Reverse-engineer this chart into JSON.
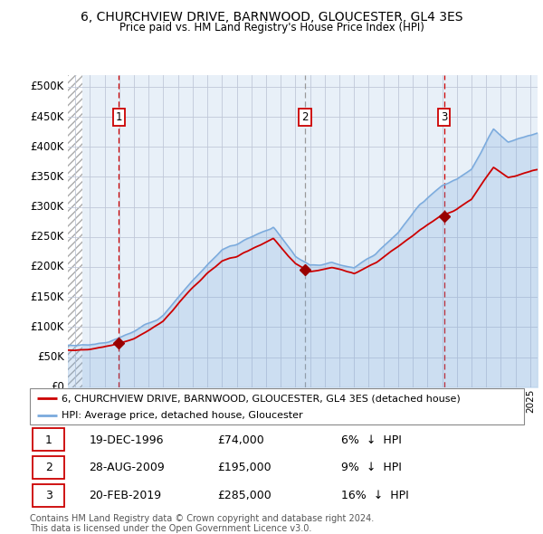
{
  "title": "6, CHURCHVIEW DRIVE, BARNWOOD, GLOUCESTER, GL4 3ES",
  "subtitle": "Price paid vs. HM Land Registry's House Price Index (HPI)",
  "hpi_label": "HPI: Average price, detached house, Gloucester",
  "property_label": "6, CHURCHVIEW DRIVE, BARNWOOD, GLOUCESTER, GL4 3ES (detached house)",
  "footer1": "Contains HM Land Registry data © Crown copyright and database right 2024.",
  "footer2": "This data is licensed under the Open Government Licence v3.0.",
  "sales": [
    {
      "num": 1,
      "date": "19-DEC-1996",
      "price": 74000,
      "year": 1996.97,
      "pct": "6%",
      "dir": "↓"
    },
    {
      "num": 2,
      "date": "28-AUG-2009",
      "price": 195000,
      "year": 2009.65,
      "pct": "9%",
      "dir": "↓"
    },
    {
      "num": 3,
      "date": "20-FEB-2019",
      "price": 285000,
      "year": 2019.13,
      "pct": "16%",
      "dir": "↓"
    }
  ],
  "ylim": [
    0,
    520000
  ],
  "xlim_start": 1993.5,
  "xlim_end": 2025.5,
  "yticks": [
    0,
    50000,
    100000,
    150000,
    200000,
    250000,
    300000,
    350000,
    400000,
    450000,
    500000
  ],
  "ytick_labels": [
    "£0",
    "£50K",
    "£100K",
    "£150K",
    "£200K",
    "£250K",
    "£300K",
    "£350K",
    "£400K",
    "£450K",
    "£500K"
  ],
  "property_color": "#cc0000",
  "hpi_color": "#7aaadd",
  "bg_color": "#e8f0f8",
  "grid_color": "#c0c8d8",
  "sale1_line_color": "#cc0000",
  "sale2_line_color": "#999999",
  "sale3_line_color": "#cc0000",
  "marker_color": "#990000",
  "box_color": "#cc0000",
  "hatch_color": "#cccccc"
}
